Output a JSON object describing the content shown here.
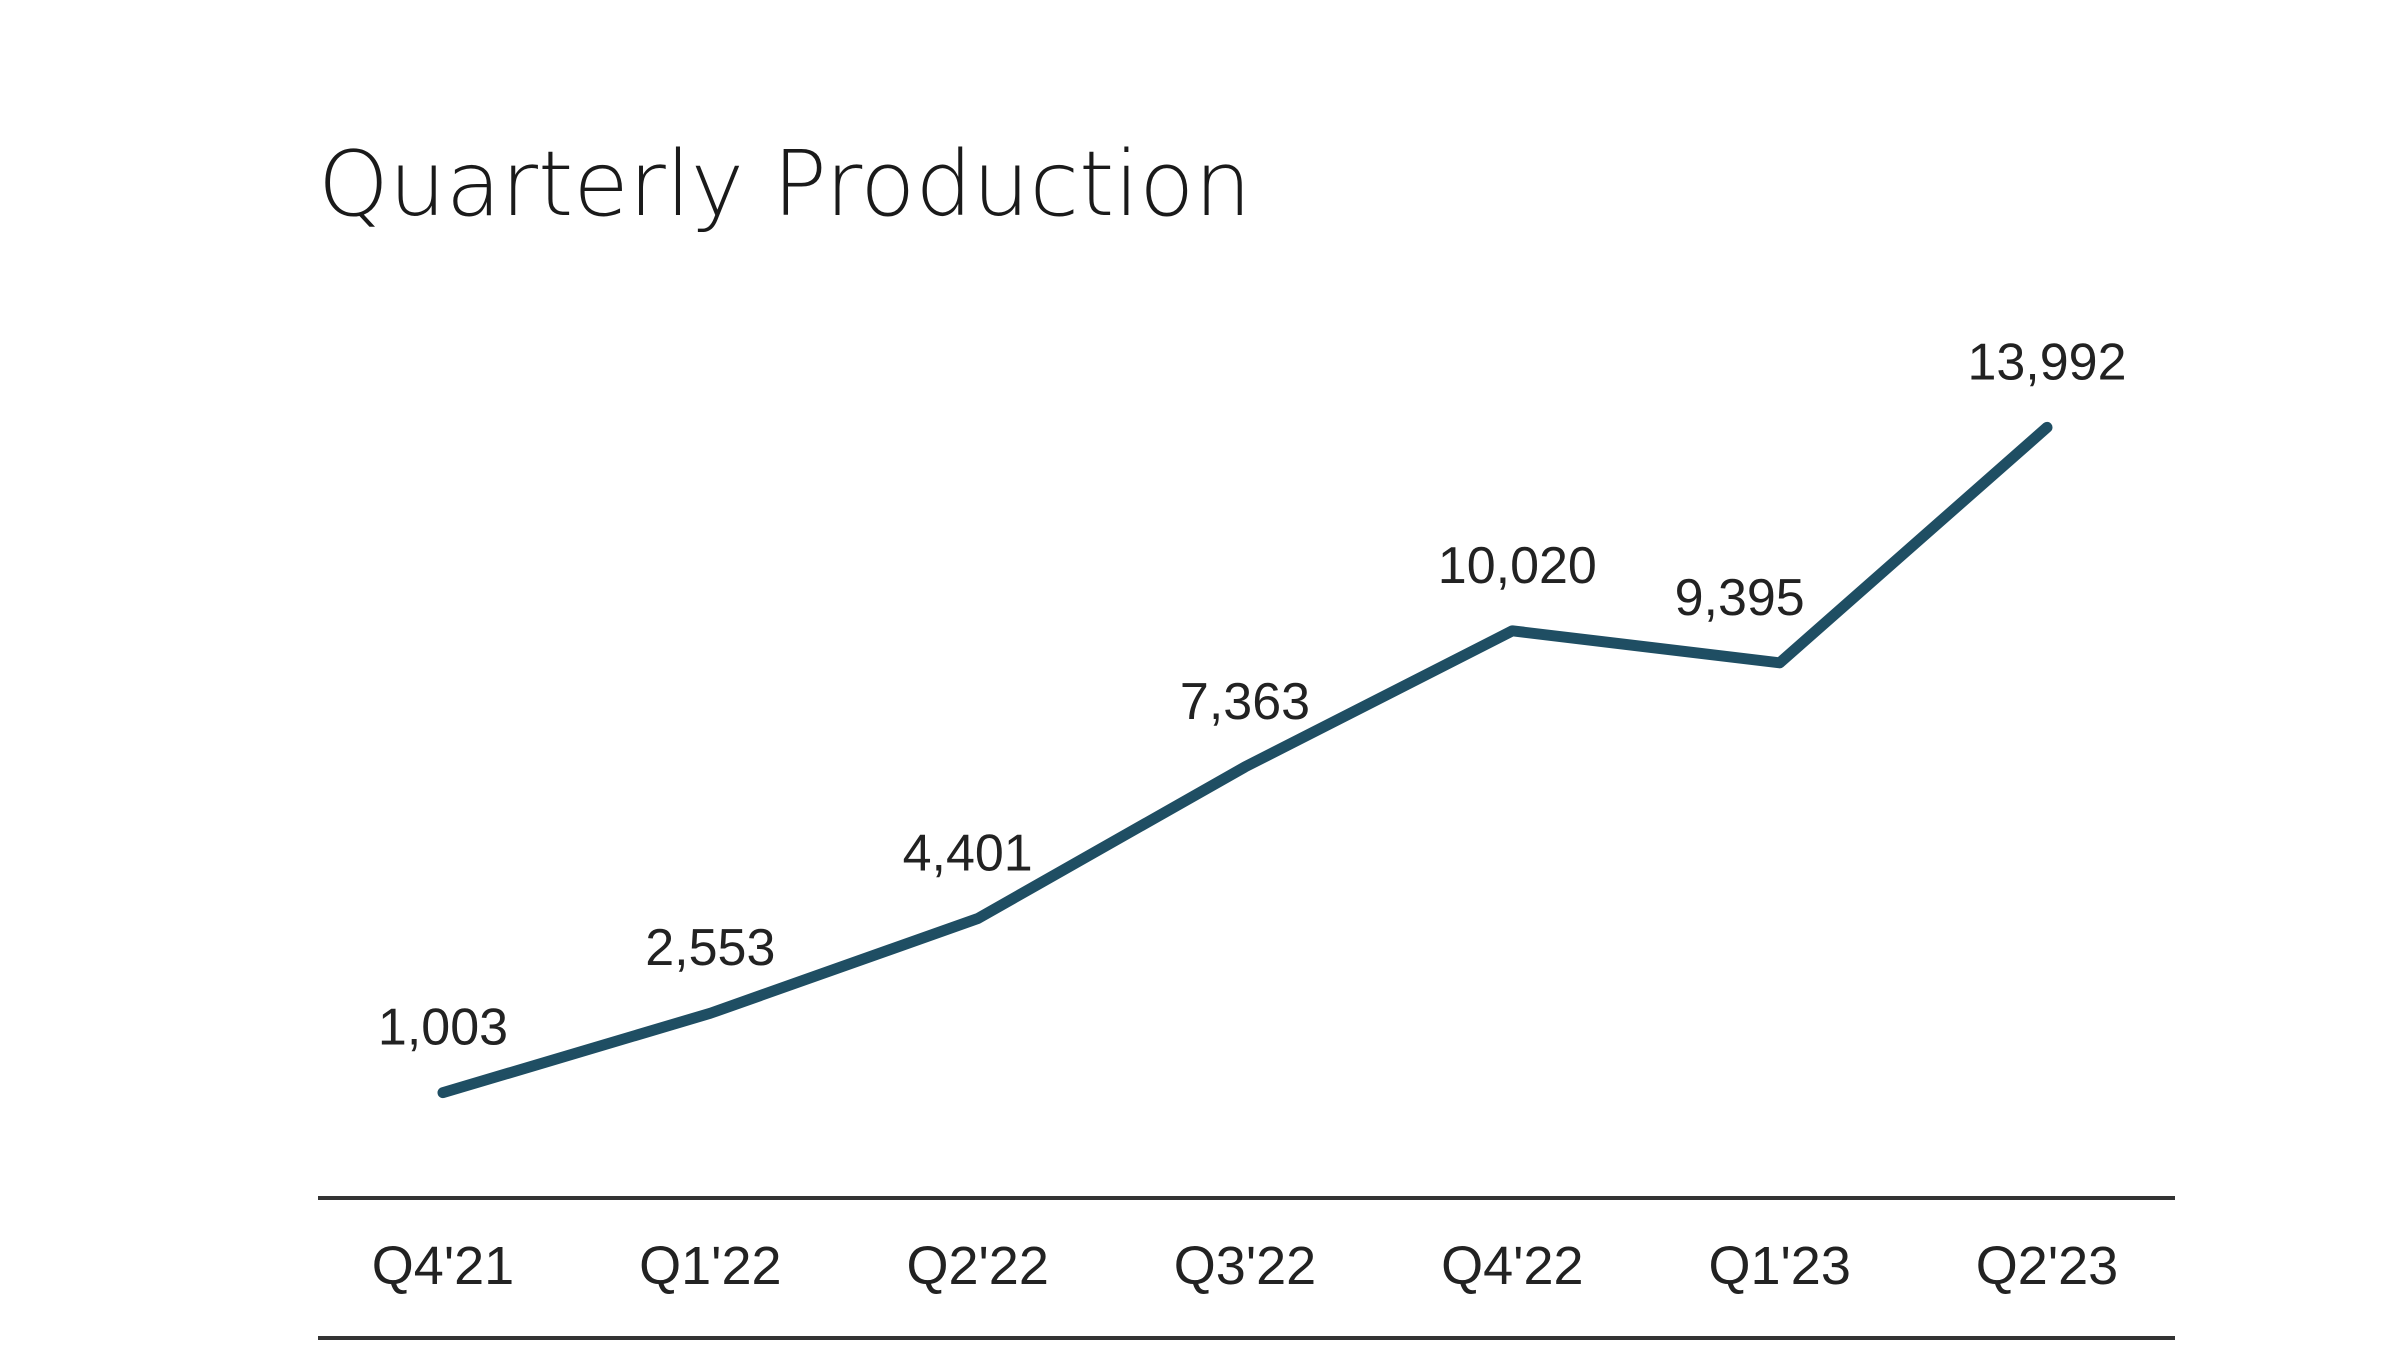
{
  "chart_data": {
    "type": "line",
    "title": "Quarterly Production",
    "categories": [
      "Q4'21",
      "Q1'22",
      "Q2'22",
      "Q3'22",
      "Q4'22",
      "Q1'23",
      "Q2'23"
    ],
    "series": [
      {
        "values": [
          1003,
          2553,
          4401,
          7363,
          10020,
          9395,
          13992
        ],
        "data_labels": [
          "1,003",
          "2,553",
          "4,401",
          "7,363",
          "10,020",
          "9,395",
          "13,992"
        ],
        "color": "#1f4e63"
      }
    ],
    "xlabel": "",
    "ylabel": "",
    "ylim": [
      0,
      14000
    ],
    "grid": false,
    "legend": "none",
    "axis_color": "#333333"
  }
}
